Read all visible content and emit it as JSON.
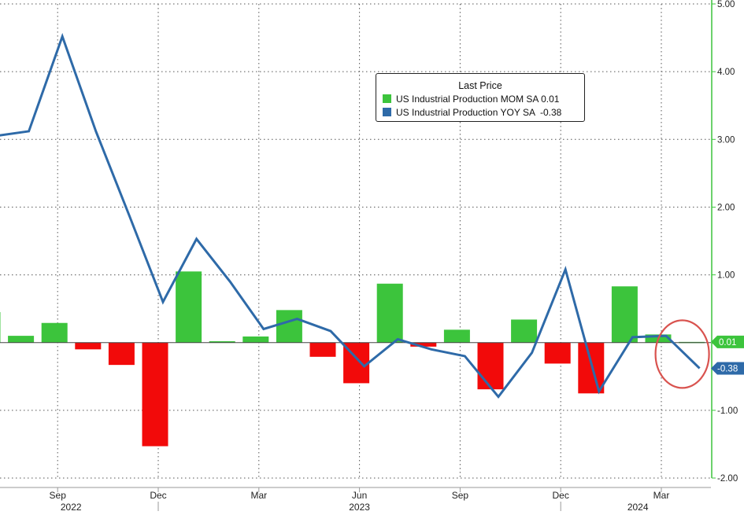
{
  "chart_data": {
    "type": "bar",
    "categories": [
      "2022-07",
      "2022-08",
      "2022-09",
      "2022-10",
      "2022-11",
      "2022-12",
      "2023-01",
      "2023-02",
      "2023-03",
      "2023-04",
      "2023-05",
      "2023-06",
      "2023-07",
      "2023-08",
      "2023-09",
      "2023-10",
      "2023-11",
      "2023-12",
      "2024-01",
      "2024-02",
      "2024-03",
      "2024-04"
    ],
    "series": [
      {
        "name": "US Industrial Production MOM SA",
        "kind": "bar",
        "values": [
          0.45,
          0.1,
          0.29,
          -0.1,
          -0.33,
          -1.53,
          1.05,
          0.02,
          0.09,
          0.48,
          -0.21,
          -0.6,
          0.87,
          -0.06,
          0.19,
          -0.69,
          0.34,
          -0.31,
          -0.75,
          0.83,
          0.12,
          0.01
        ],
        "pos_color": "#3cc43c",
        "neg_color": "#f20a0a"
      },
      {
        "name": "US Industrial Production YOY SA",
        "kind": "line",
        "values": [
          3.05,
          3.12,
          4.52,
          3.12,
          1.87,
          0.6,
          1.53,
          0.9,
          0.2,
          0.35,
          0.17,
          -0.35,
          0.05,
          -0.1,
          -0.2,
          -0.8,
          -0.15,
          1.08,
          -0.72,
          0.08,
          0.1,
          -0.38
        ],
        "color": "#2e6aa8"
      }
    ],
    "ylim": [
      -2.0,
      5.0
    ],
    "yticks": [
      "5.00",
      "4.00",
      "3.00",
      "2.00",
      "1.00",
      "-1.00",
      "-2.00"
    ],
    "ytick_values": [
      5,
      4,
      3,
      2,
      1,
      -1,
      -2
    ],
    "month_ticks": [
      "Sep",
      "Dec",
      "Mar",
      "Jun",
      "Sep",
      "Dec",
      "Mar"
    ],
    "month_tick_index": [
      2,
      5,
      8,
      11,
      14,
      17,
      20
    ],
    "year_labels": [
      "2022",
      "2023",
      "2024"
    ],
    "year_label_index": [
      2.4,
      11,
      19.3
    ],
    "last_values": {
      "mom": "0.01",
      "yoy": "-0.38"
    },
    "grid": true,
    "legend": {
      "title": "Last Price",
      "entries": [
        {
          "label": "US Industrial Production MOM SA 0.01",
          "color": "#3cc43c"
        },
        {
          "label": "US Industrial Production YOY SA  -0.38",
          "color": "#2e6aa8"
        }
      ],
      "position": "top-center"
    },
    "annotation": {
      "shape": "circle",
      "color": "#d9534f",
      "target": "latest values"
    }
  }
}
